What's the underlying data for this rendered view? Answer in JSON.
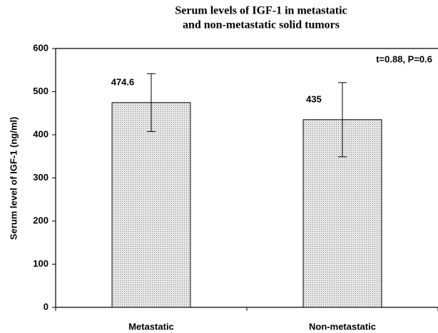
{
  "chart_data": {
    "type": "bar",
    "title": [
      "Serum levels of IGF-1 in metastatic",
      "and non-metastatic solid tumors"
    ],
    "annotation": "t=0.88, P=0.6",
    "ylabel": "Serum level of IGF-1 (ng/ml)",
    "categories": [
      "Metastatic",
      "Non-metastatic"
    ],
    "values": [
      474.6,
      435
    ],
    "errors": [
      67,
      86
    ],
    "color": "#d4d4d4",
    "ylim": [
      0,
      600
    ],
    "yticks": [
      0,
      100,
      200,
      300,
      400,
      500,
      600
    ]
  }
}
